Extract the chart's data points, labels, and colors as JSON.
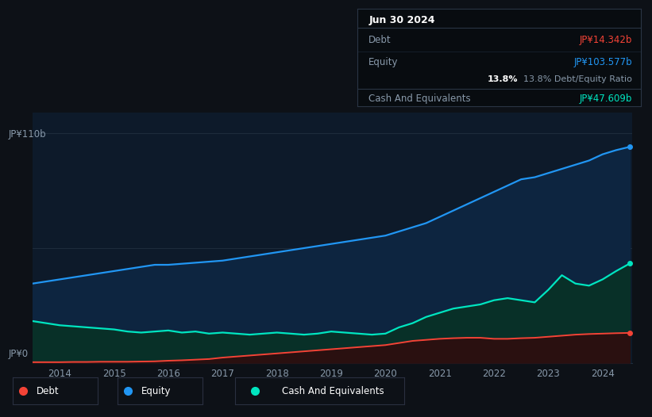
{
  "bg_color": "#0d1117",
  "chart_bg": "#0d1a2a",
  "tooltip": {
    "date": "Jun 30 2024",
    "debt_label": "Debt",
    "debt_value": "JP¥14.342b",
    "equity_label": "Equity",
    "equity_value": "JP¥103.577b",
    "ratio_value": "13.8%",
    "ratio_label": "Debt/Equity Ratio",
    "cash_label": "Cash And Equivalents",
    "cash_value": "JP¥47.609b"
  },
  "ylabel_top": "JP¥110b",
  "ylabel_bottom": "JP¥0",
  "years": [
    2013.5,
    2013.75,
    2014.0,
    2014.25,
    2014.5,
    2014.75,
    2015.0,
    2015.25,
    2015.5,
    2015.75,
    2016.0,
    2016.25,
    2016.5,
    2016.75,
    2017.0,
    2017.25,
    2017.5,
    2017.75,
    2018.0,
    2018.25,
    2018.5,
    2018.75,
    2019.0,
    2019.25,
    2019.5,
    2019.75,
    2020.0,
    2020.25,
    2020.5,
    2020.75,
    2021.0,
    2021.25,
    2021.5,
    2021.75,
    2022.0,
    2022.25,
    2022.5,
    2022.75,
    2023.0,
    2023.25,
    2023.5,
    2023.75,
    2024.0,
    2024.25,
    2024.5
  ],
  "equity": [
    38,
    39,
    40,
    41,
    42,
    43,
    44,
    45,
    46,
    47,
    47,
    47.5,
    48,
    48.5,
    49,
    50,
    51,
    52,
    53,
    54,
    55,
    56,
    57,
    58,
    59,
    60,
    61,
    63,
    65,
    67,
    70,
    73,
    76,
    79,
    82,
    85,
    88,
    89,
    91,
    93,
    95,
    97,
    100,
    102,
    103.577
  ],
  "cash": [
    20,
    19,
    18,
    17.5,
    17,
    16.5,
    16,
    15,
    14.5,
    15,
    15.5,
    14.5,
    15,
    14,
    14.5,
    14,
    13.5,
    14,
    14.5,
    14,
    13.5,
    14,
    15,
    14.5,
    14,
    13.5,
    14,
    17,
    19,
    22,
    24,
    26,
    27,
    28,
    30,
    31,
    30,
    29,
    35,
    42,
    38,
    37,
    40,
    44,
    47.609
  ],
  "debt": [
    0.3,
    0.3,
    0.3,
    0.4,
    0.4,
    0.5,
    0.5,
    0.5,
    0.6,
    0.7,
    1.0,
    1.2,
    1.5,
    1.8,
    2.5,
    3.0,
    3.5,
    4.0,
    4.5,
    5.0,
    5.5,
    6.0,
    6.5,
    7.0,
    7.5,
    8.0,
    8.5,
    9.5,
    10.5,
    11.0,
    11.5,
    11.8,
    12.0,
    12.0,
    11.5,
    11.5,
    11.8,
    12.0,
    12.5,
    13.0,
    13.5,
    13.8,
    14.0,
    14.2,
    14.342
  ],
  "equity_color": "#2196f3",
  "cash_color": "#00e5c0",
  "debt_color": "#f44336",
  "equity_fill": "#0d2540",
  "cash_fill": "#083028",
  "debt_fill": "#2a1010",
  "x_ticks": [
    2014,
    2015,
    2016,
    2017,
    2018,
    2019,
    2020,
    2021,
    2022,
    2023,
    2024
  ],
  "ylim": [
    0,
    120
  ],
  "grid_line_color": "#1e2d3d",
  "legend_labels": [
    "Debt",
    "Equity",
    "Cash And Equivalents"
  ],
  "legend_colors": [
    "#f44336",
    "#2196f3",
    "#00e5c0"
  ],
  "legend_bg": "#0d1117",
  "legend_border": "#2a3040"
}
